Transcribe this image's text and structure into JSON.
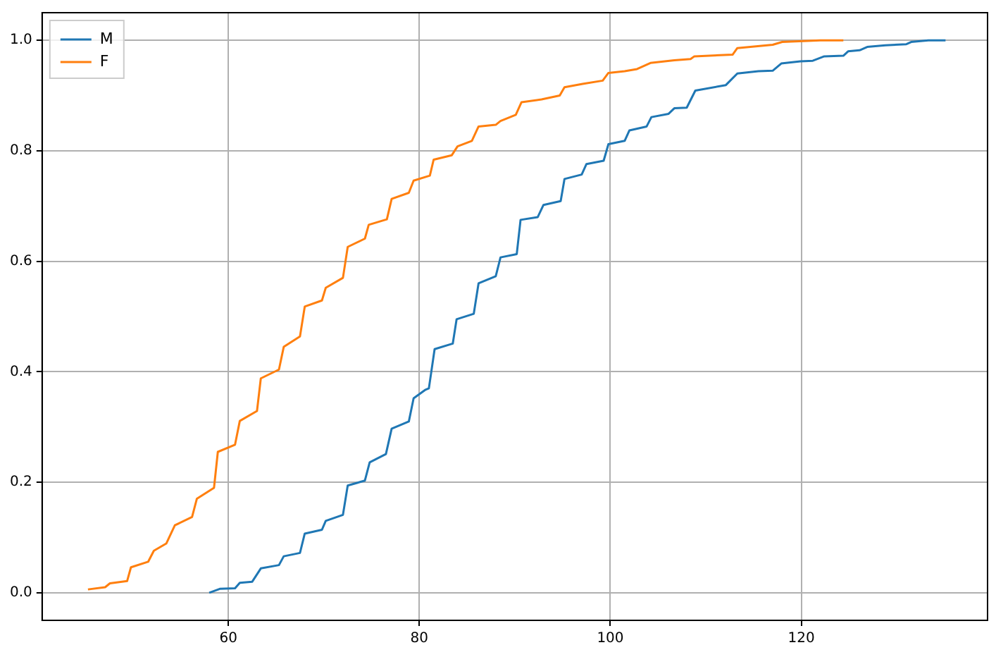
{
  "chart_data": {
    "type": "line",
    "xlim": [
      40.5,
      139.5
    ],
    "xticks": [
      60,
      80,
      100,
      120
    ],
    "ylim": [
      -0.05,
      1.05
    ],
    "yticks": [
      {
        "value": 0,
        "label": "0.0"
      },
      {
        "value": 0.2,
        "label": "0.2"
      },
      {
        "value": 0.4,
        "label": "0.4"
      },
      {
        "value": 0.6,
        "label": "0.6"
      },
      {
        "value": 0.8,
        "label": "0.8"
      },
      {
        "value": 1,
        "label": "1.0"
      }
    ],
    "grid": true,
    "legend": "top left",
    "marker": "none",
    "line_style": "solid",
    "series": [
      {
        "name": "M",
        "color": "#1f77b4",
        "x": [
          58.0,
          59.1,
          60.7,
          61.2,
          62.5,
          63.4,
          65.3,
          65.8,
          67.5,
          68.0,
          69.8,
          70.2,
          72.0,
          72.5,
          74.3,
          74.8,
          76.5,
          77.1,
          78.9,
          79.4,
          80.6,
          81.0,
          81.6,
          83.5,
          83.9,
          85.7,
          86.2,
          88.0,
          88.5,
          90.2,
          90.6,
          92.4,
          93.0,
          94.8,
          95.2,
          97.0,
          97.5,
          99.3,
          99.8,
          101.5,
          102.0,
          103.8,
          104.3,
          106.1,
          106.7,
          108.0,
          108.9,
          112.1,
          113.3,
          115.5,
          117.0,
          117.9,
          119.9,
          121.2,
          122.4,
          124.4,
          124.9,
          126.1,
          126.9,
          128.8,
          131.0,
          131.5,
          133.3,
          135.1
        ],
        "values": [
          0.0,
          0.007,
          0.008,
          0.018,
          0.02,
          0.044,
          0.05,
          0.066,
          0.072,
          0.107,
          0.114,
          0.13,
          0.141,
          0.194,
          0.203,
          0.236,
          0.251,
          0.297,
          0.31,
          0.352,
          0.367,
          0.37,
          0.441,
          0.451,
          0.495,
          0.505,
          0.56,
          0.573,
          0.607,
          0.613,
          0.675,
          0.68,
          0.702,
          0.709,
          0.749,
          0.757,
          0.776,
          0.782,
          0.812,
          0.818,
          0.837,
          0.844,
          0.861,
          0.867,
          0.877,
          0.878,
          0.909,
          0.919,
          0.94,
          0.944,
          0.945,
          0.958,
          0.962,
          0.963,
          0.971,
          0.972,
          0.98,
          0.982,
          0.988,
          0.991,
          0.993,
          0.997,
          1.0,
          1.0
        ]
      },
      {
        "name": "F",
        "color": "#ff7f0e",
        "x": [
          45.3,
          47.1,
          47.6,
          49.4,
          49.8,
          51.6,
          52.2,
          53.5,
          54.4,
          56.2,
          56.7,
          58.5,
          58.9,
          60.7,
          61.2,
          63.0,
          63.4,
          65.3,
          65.8,
          67.5,
          68.0,
          69.8,
          70.2,
          72.0,
          72.5,
          74.3,
          74.7,
          76.6,
          77.1,
          78.9,
          79.4,
          81.1,
          81.5,
          83.4,
          84.0,
          85.5,
          86.2,
          88.0,
          88.5,
          90.1,
          90.7,
          92.8,
          94.7,
          95.2,
          97.1,
          99.2,
          99.8,
          101.5,
          102.8,
          104.2,
          106.7,
          108.4,
          108.8,
          112.8,
          113.3,
          117.0,
          118.0,
          122.0,
          124.4
        ],
        "values": [
          0.006,
          0.01,
          0.017,
          0.021,
          0.046,
          0.056,
          0.076,
          0.089,
          0.122,
          0.137,
          0.17,
          0.19,
          0.255,
          0.268,
          0.311,
          0.329,
          0.388,
          0.404,
          0.445,
          0.464,
          0.518,
          0.529,
          0.552,
          0.57,
          0.626,
          0.641,
          0.666,
          0.676,
          0.713,
          0.724,
          0.746,
          0.755,
          0.784,
          0.792,
          0.808,
          0.818,
          0.844,
          0.847,
          0.854,
          0.865,
          0.888,
          0.893,
          0.9,
          0.915,
          0.921,
          0.927,
          0.941,
          0.944,
          0.948,
          0.959,
          0.964,
          0.966,
          0.971,
          0.974,
          0.986,
          0.992,
          0.997,
          1.0,
          1.0
        ]
      }
    ]
  }
}
